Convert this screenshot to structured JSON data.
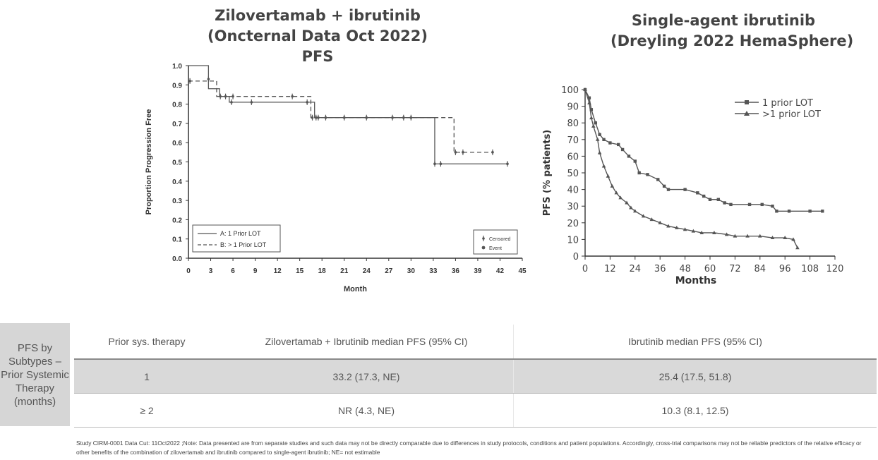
{
  "left_title": [
    "Zilovertamab + ibrutinib",
    "(Oncternal Data Oct 2022)",
    "PFS"
  ],
  "right_title": [
    "Single-agent ibrutinib",
    "(Dreyling 2022 HemaSphere)"
  ],
  "table": {
    "side_label": "PFS by Subtypes – Prior Systemic Therapy (months)",
    "headers": [
      "Prior sys. therapy",
      "Zilovertamab + Ibrutinib median PFS (95% CI)",
      "Ibrutinib median PFS (95% CI)"
    ],
    "rows": [
      [
        "1",
        "33.2 (17.3, NE)",
        "25.4 (17.5, 51.8)"
      ],
      [
        "≥ 2",
        "NR (4.3, NE)",
        "10.3 (8.1, 12.5)"
      ]
    ]
  },
  "footnote": "Study CIRM-0001 Data Cut: 11Oct2022 ;Note: Data presented are from separate studies and such data may not be directly comparable due to differences in study protocols, conditions and patient populations. Accordingly, cross-trial comparisons may not be reliable predictors of the relative efficacy or other benefits of the combination of zilovertamab and ibrutinib compared to single-agent ibrutinib; NE= not estimable",
  "colors": {
    "line": "#555555",
    "axis": "#333333",
    "table_shade": "#d9d9d9",
    "side_label_bg": "#d6d6d6"
  },
  "chart_data": [
    {
      "type": "line",
      "title": "Zilovertamab + ibrutinib (Oncternal Data Oct 2022) PFS",
      "xlabel": "Month",
      "ylabel": "Proportion Progression Free",
      "xlim": [
        0,
        45
      ],
      "ylim": [
        0,
        1.0
      ],
      "x_ticks": [
        0,
        3,
        6,
        9,
        12,
        15,
        18,
        21,
        24,
        27,
        30,
        33,
        36,
        39,
        42,
        45
      ],
      "y_ticks": [
        0.0,
        0.1,
        0.2,
        0.3,
        0.4,
        0.5,
        0.6,
        0.7,
        0.8,
        0.9,
        1.0
      ],
      "legend": {
        "position": "bottom-left",
        "entries": [
          "A: 1 Prior LOT",
          "B: > 1 Prior LOT"
        ]
      },
      "marker_legend": {
        "position": "bottom-right",
        "entries": [
          "Censored",
          "Event"
        ]
      },
      "series": [
        {
          "name": "A: 1 Prior LOT",
          "style": "solid",
          "steps": [
            [
              0,
              1.0
            ],
            [
              2.7,
              0.88
            ],
            [
              4.2,
              0.84
            ],
            [
              5.5,
              0.81
            ],
            [
              17.0,
              0.73
            ],
            [
              33.2,
              0.49
            ],
            [
              43.0,
              0.49
            ]
          ],
          "censored": [
            [
              2.7,
              0.93
            ],
            [
              4.3,
              0.84
            ],
            [
              5.8,
              0.81
            ],
            [
              8.5,
              0.81
            ],
            [
              16.0,
              0.81
            ],
            [
              17.5,
              0.73
            ],
            [
              18.5,
              0.73
            ],
            [
              21.0,
              0.73
            ],
            [
              24.0,
              0.73
            ],
            [
              27.5,
              0.73
            ],
            [
              29.0,
              0.73
            ],
            [
              30.0,
              0.73
            ],
            [
              33.2,
              0.49
            ],
            [
              34.0,
              0.49
            ],
            [
              43.0,
              0.49
            ]
          ]
        },
        {
          "name": "B: > 1 Prior LOT",
          "style": "dashed",
          "steps": [
            [
              0,
              0.92
            ],
            [
              3.8,
              0.84
            ],
            [
              16.5,
              0.73
            ],
            [
              35.8,
              0.55
            ],
            [
              41.0,
              0.55
            ]
          ],
          "censored": [
            [
              0.2,
              0.92
            ],
            [
              5.0,
              0.84
            ],
            [
              6.0,
              0.84
            ],
            [
              14.0,
              0.84
            ],
            [
              16.7,
              0.73
            ],
            [
              17.2,
              0.73
            ],
            [
              36.0,
              0.55
            ],
            [
              37.0,
              0.55
            ],
            [
              41.0,
              0.55
            ]
          ]
        }
      ]
    },
    {
      "type": "line",
      "title": "Single-agent ibrutinib (Dreyling 2022 HemaSphere)",
      "xlabel": "Months",
      "ylabel": "PFS (% patients)",
      "xlim": [
        0,
        120
      ],
      "ylim": [
        0,
        100
      ],
      "x_ticks": [
        0,
        12,
        24,
        36,
        48,
        60,
        72,
        84,
        96,
        108,
        120
      ],
      "y_ticks": [
        0,
        10,
        20,
        30,
        40,
        50,
        60,
        70,
        80,
        90,
        100
      ],
      "legend": {
        "position": "top-right",
        "entries": [
          "1 prior LOT",
          ">1 prior LOT"
        ]
      },
      "series": [
        {
          "name": "1 prior LOT",
          "marker": "square",
          "points": [
            [
              0,
              100
            ],
            [
              2,
              95
            ],
            [
              3,
              88
            ],
            [
              5,
              80
            ],
            [
              7,
              73
            ],
            [
              9,
              70
            ],
            [
              12,
              68
            ],
            [
              16,
              67
            ],
            [
              18,
              64
            ],
            [
              21,
              60
            ],
            [
              24,
              57
            ],
            [
              26,
              50
            ],
            [
              30,
              49
            ],
            [
              35,
              46
            ],
            [
              38,
              42
            ],
            [
              40,
              40
            ],
            [
              48,
              40
            ],
            [
              54,
              38
            ],
            [
              57,
              36
            ],
            [
              60,
              34
            ],
            [
              64,
              34
            ],
            [
              67,
              32
            ],
            [
              70,
              31
            ],
            [
              79,
              31
            ],
            [
              85,
              31
            ],
            [
              90,
              30
            ],
            [
              92,
              27
            ],
            [
              98,
              27
            ],
            [
              108,
              27
            ],
            [
              114,
              27
            ]
          ]
        },
        {
          "name": ">1 prior LOT",
          "marker": "triangle",
          "points": [
            [
              0,
              100
            ],
            [
              2,
              92
            ],
            [
              3,
              83
            ],
            [
              4,
              78
            ],
            [
              6,
              70
            ],
            [
              7,
              62
            ],
            [
              9,
              54
            ],
            [
              11,
              48
            ],
            [
              13,
              42
            ],
            [
              15,
              38
            ],
            [
              17,
              35
            ],
            [
              20,
              32
            ],
            [
              22,
              29
            ],
            [
              24,
              27
            ],
            [
              28,
              24
            ],
            [
              32,
              22
            ],
            [
              36,
              20
            ],
            [
              40,
              18
            ],
            [
              44,
              17
            ],
            [
              48,
              16
            ],
            [
              52,
              15
            ],
            [
              56,
              14
            ],
            [
              62,
              14
            ],
            [
              68,
              13
            ],
            [
              72,
              12
            ],
            [
              78,
              12
            ],
            [
              84,
              12
            ],
            [
              90,
              11
            ],
            [
              96,
              11
            ],
            [
              100,
              10
            ],
            [
              102,
              5
            ]
          ]
        }
      ]
    }
  ]
}
